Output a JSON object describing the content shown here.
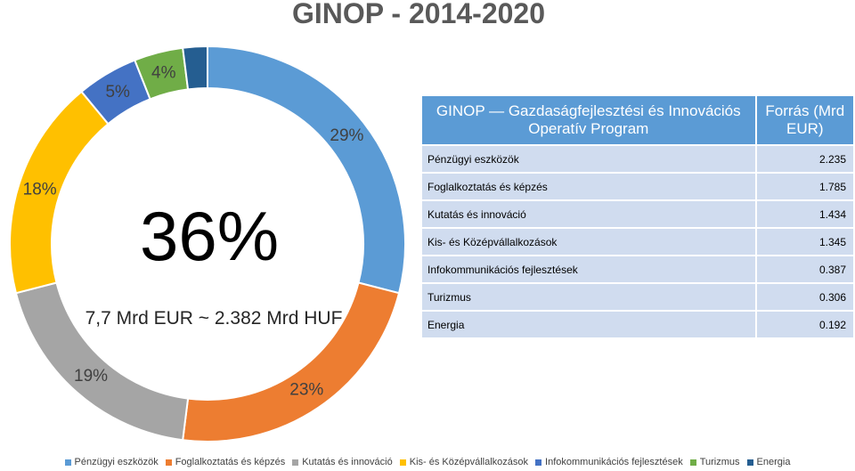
{
  "chart_data": {
    "type": "pie",
    "title": "GINOP - 2014-2020",
    "center_value": "36%",
    "center_caption": "7,7 Mrd EUR ~ 2.382 Mrd HUF",
    "series": [
      {
        "name": "Pénzügyi eszközök",
        "value": 29,
        "label": "29%",
        "color": "#5b9bd5"
      },
      {
        "name": "Foglalkoztatás és képzés",
        "value": 23,
        "label": "23%",
        "color": "#ed7d31"
      },
      {
        "name": "Kutatás és innováció",
        "value": 19,
        "label": "19%",
        "color": "#a5a5a5"
      },
      {
        "name": "Kis- és Középvállalkozások",
        "value": 18,
        "label": "18%",
        "color": "#ffc000"
      },
      {
        "name": "Infokommunikációs fejlesztések",
        "value": 5,
        "label": "5%",
        "color": "#4472c4"
      },
      {
        "name": "Turizmus",
        "value": 4,
        "label": "4%",
        "color": "#70ad47"
      },
      {
        "name": "Energia",
        "value": 2,
        "label": "",
        "color": "#255e91"
      }
    ],
    "legend_position": "bottom"
  },
  "table": {
    "header": {
      "program": "GINOP — Gazdaságfejlesztési és Innovációs Operatív Program",
      "source": "Forrás (Mrd EUR)"
    },
    "rows": [
      {
        "label": "Pénzügyi eszközök",
        "value": "2.235"
      },
      {
        "label": "Foglalkoztatás és képzés",
        "value": "1.785"
      },
      {
        "label": "Kutatás és innováció",
        "value": "1.434"
      },
      {
        "label": "Kis- és Középvállalkozások",
        "value": "1.345"
      },
      {
        "label": "Infokommunikációs fejlesztések",
        "value": "0.387"
      },
      {
        "label": "Turizmus",
        "value": "0.306"
      },
      {
        "label": "Energia",
        "value": "0.192"
      }
    ]
  }
}
